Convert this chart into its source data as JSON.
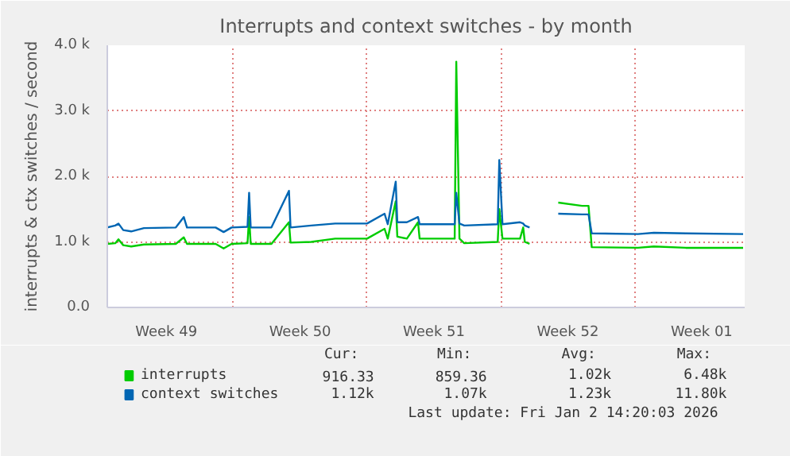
{
  "chart_data": {
    "type": "line",
    "title": "Interrupts and context switches - by month",
    "ylabel": "interrupts & ctx switches / second",
    "x": [
      "2025-12-01T10:00",
      "2025-12-01T20:00",
      "2025-12-02T00:00",
      "2025-12-02T06:00",
      "2025-12-02T16:00",
      "2025-12-03T08:00",
      "2025-12-05T00:00",
      "2025-12-05T10:00",
      "2025-12-05T14:00",
      "2025-12-07T02:00",
      "2025-12-07T12:00",
      "2025-12-07T22:00",
      "2025-12-08T18:00",
      "2025-12-08T20:00",
      "2025-12-08T22:00",
      "2025-12-10T00:00",
      "2025-12-10T22:00",
      "2025-12-11T00:00",
      "2025-12-12T02:00",
      "2025-12-13T08:00",
      "2025-12-15T00:00",
      "2025-12-15T22:00",
      "2025-12-16T02:00",
      "2025-12-16T12:00",
      "2025-12-16T14:00",
      "2025-12-17T02:00",
      "2025-12-17T16:00",
      "2025-12-17T18:00",
      "2025-12-19T14:00",
      "2025-12-19T16:00",
      "2025-12-19T20:00",
      "2025-12-20T02:00",
      "2025-12-21T20:00",
      "2025-12-21T22:00",
      "2025-12-22T02:00",
      "2025-12-23T00:00",
      "2025-12-23T04:00",
      "2025-12-23T06:00",
      "2025-12-23T12:00",
      "2025-12-24T12:00",
      "2025-12-25T00:00",
      "2025-12-26T06:00",
      "2025-12-26T14:00",
      "2025-12-26T18:00",
      "2025-12-29T04:00",
      "2025-12-30T00:00",
      "2025-12-31T16:00",
      "2026-01-03T16:00"
    ],
    "series": [
      {
        "name": "interrupts",
        "color": "#00cc00",
        "values": [
          970,
          980,
          1040,
          950,
          930,
          960,
          970,
          1070,
          970,
          970,
          900,
          970,
          980,
          1380,
          970,
          970,
          1300,
          990,
          1000,
          1050,
          1050,
          1200,
          1050,
          1620,
          1080,
          1050,
          1300,
          1050,
          1050,
          3750,
          1050,
          980,
          1000,
          1500,
          1050,
          1050,
          1220,
          1000,
          970,
          null,
          1600,
          1550,
          1550,
          920,
          910,
          930,
          910,
          910
        ]
      },
      {
        "name": "context switches",
        "color": "#0066b3",
        "values": [
          1220,
          1250,
          1280,
          1180,
          1160,
          1210,
          1220,
          1380,
          1220,
          1220,
          1150,
          1220,
          1230,
          1750,
          1220,
          1220,
          1780,
          1220,
          1250,
          1280,
          1280,
          1430,
          1270,
          1920,
          1300,
          1300,
          1380,
          1270,
          1270,
          1750,
          1280,
          1250,
          1270,
          2250,
          1270,
          1300,
          1280,
          1250,
          1220,
          null,
          1430,
          1420,
          1420,
          1130,
          1120,
          1140,
          1130,
          1120
        ]
      }
    ],
    "xlim": [
      "2025-12-01T10:00",
      "2026-01-03T18:00"
    ],
    "xticks": [
      {
        "value": "2025-12-04T12:00",
        "label": "Week 49"
      },
      {
        "value": "2025-12-08T00:00",
        "label": null
      },
      {
        "value": "2025-12-11T12:00",
        "label": "Week 50"
      },
      {
        "value": "2025-12-15T00:00",
        "label": null
      },
      {
        "value": "2025-12-18T12:00",
        "label": "Week 51"
      },
      {
        "value": "2025-12-22T00:00",
        "label": null
      },
      {
        "value": "2025-12-25T12:00",
        "label": "Week 52"
      },
      {
        "value": "2025-12-29T00:00",
        "label": null
      },
      {
        "value": "2026-01-01T12:00",
        "label": "Week 01"
      }
    ],
    "ylim": [
      0,
      4000
    ],
    "yticks": [
      {
        "value": 0,
        "label": "0.0"
      },
      {
        "value": 1000,
        "label": "1.0 k"
      },
      {
        "value": 2000,
        "label": "2.0 k"
      },
      {
        "value": 3000,
        "label": "3.0 k"
      },
      {
        "value": 4000,
        "label": "4.0 k"
      }
    ],
    "grid": true,
    "legend": "bottom",
    "line_style": "solid",
    "annotations": [
      "Cur:",
      "Min:",
      "Avg:",
      "Max:",
      "916.33",
      "859.36",
      "1.02k",
      "6.48k",
      "1.12k",
      "1.07k",
      "1.23k",
      "11.80k",
      "Last update: Fri Jan  2 14:20:03 2026"
    ]
  }
}
